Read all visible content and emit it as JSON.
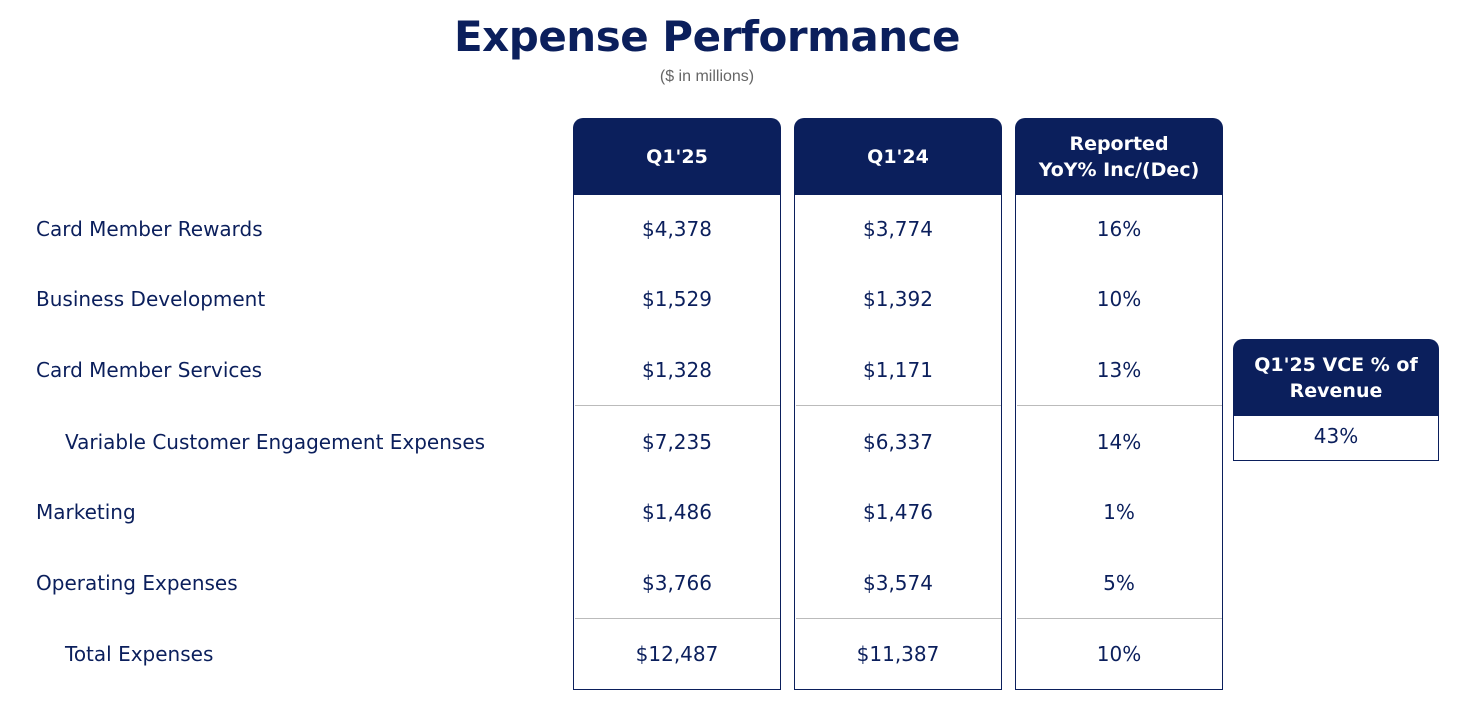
{
  "header": {
    "title": "Expense Performance",
    "subtitle": "($ in millions)"
  },
  "table": {
    "columns": [
      [
        "Q1'25"
      ],
      [
        "Q1'24"
      ],
      [
        "Reported",
        "YoY% Inc/(Dec)"
      ]
    ],
    "rows": [
      [
        "Card Member Rewards",
        "$4,378",
        "$3,774",
        "16%"
      ],
      [
        "Business Development",
        "$1,529",
        "$1,392",
        "10%"
      ],
      [
        "Card Member Services",
        "$1,328",
        "$1,171",
        "13%"
      ],
      [
        "Variable Customer Engagement Expenses",
        "$7,235",
        "$6,337",
        "14%"
      ],
      [
        "Marketing",
        "$1,486",
        "$1,476",
        "1%"
      ],
      [
        "Operating Expenses",
        "$3,766",
        "$3,574",
        "5%"
      ],
      [
        "Total Expenses",
        "$12,487",
        "$11,387",
        "10%"
      ]
    ]
  },
  "side_box": {
    "title": [
      "Q1'25 VCE % of",
      "Revenue"
    ],
    "value": "43%"
  }
}
